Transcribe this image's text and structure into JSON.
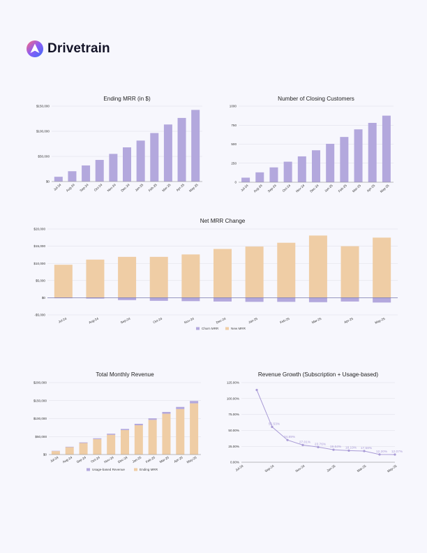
{
  "brand": {
    "name": "Drivetrain",
    "icon": "drivetrain-logo-icon"
  },
  "colors": {
    "purple": "#b3a8dd",
    "tan": "#efcda5",
    "purple_line": "#a99bd6",
    "background": "#f7f7fd"
  },
  "chart_data": [
    {
      "id": "ending-mrr",
      "type": "bar",
      "title": "Ending MRR (in $)",
      "categories": [
        "Jul-24",
        "Aug-24",
        "Sep-24",
        "Oct-24",
        "Nov-24",
        "Dec-24",
        "Jan-25",
        "Feb-25",
        "Mar-25",
        "Apr-25",
        "May-25"
      ],
      "values": [
        9500,
        20500,
        32000,
        43000,
        55000,
        68000,
        81500,
        96500,
        113500,
        126500,
        142500
      ],
      "ylim": [
        0,
        150000
      ],
      "yticks": [
        0,
        50000,
        100000,
        150000
      ],
      "ytick_labels": [
        "$0",
        "$50,000",
        "$100,000",
        "$150,000"
      ],
      "xlabel": "",
      "ylabel": ""
    },
    {
      "id": "closing-customers",
      "type": "bar",
      "title": "Number of Closing Customers",
      "categories": [
        "Jul-24",
        "Aug-24",
        "Sep-24",
        "Oct-24",
        "Nov-24",
        "Dec-24",
        "Jan-25",
        "Feb-25",
        "Mar-25",
        "Apr-25",
        "May-25"
      ],
      "values": [
        60,
        130,
        195,
        270,
        340,
        420,
        505,
        595,
        695,
        780,
        875
      ],
      "ylim": [
        0,
        1000
      ],
      "yticks": [
        0,
        250,
        500,
        750,
        1000
      ],
      "ytick_labels": [
        "0",
        "250",
        "500",
        "750",
        "1000"
      ],
      "xlabel": "",
      "ylabel": ""
    },
    {
      "id": "net-mrr-change",
      "type": "bar",
      "stacked": true,
      "title": "Net MRR Change",
      "categories": [
        "Jul-24",
        "Aug-24",
        "Sep-24",
        "Oct-24",
        "Nov-24",
        "Dec-24",
        "Jan-25",
        "Feb-25",
        "Mar-25",
        "Apr-25",
        "May-25"
      ],
      "series": [
        {
          "name": "Churn MRR",
          "values": [
            -150,
            -250,
            -700,
            -900,
            -1000,
            -1100,
            -1200,
            -1200,
            -1300,
            -1100,
            -1400
          ]
        },
        {
          "name": "New MRR",
          "values": [
            9600,
            11100,
            11900,
            11900,
            12600,
            14200,
            14900,
            16000,
            18100,
            15000,
            17500
          ]
        }
      ],
      "ylim": [
        -5000,
        20000
      ],
      "yticks": [
        -5000,
        0,
        5000,
        10000,
        15000,
        20000
      ],
      "ytick_labels": [
        "-$5,000",
        "$0",
        "$5,000",
        "$10,000",
        "$15,000",
        "$20,000"
      ],
      "legend": "bottom"
    },
    {
      "id": "total-monthly-revenue",
      "type": "bar",
      "stacked": true,
      "title": "Total Monthly Revenue",
      "categories": [
        "Jul-24",
        "Aug-24",
        "Sep-24",
        "Oct-24",
        "Nov-24",
        "Dec-24",
        "Jan-25",
        "Feb-25",
        "Mar-25",
        "Apr-25",
        "May-25"
      ],
      "series": [
        {
          "name": "Ending MRR",
          "values": [
            9500,
            20500,
            32000,
            43000,
            55000,
            68000,
            81500,
            96500,
            113500,
            126500,
            142500
          ]
        },
        {
          "name": "Usage-based Revenue",
          "values": [
            800,
            1200,
            1800,
            2200,
            3000,
            3200,
            4000,
            4200,
            5000,
            6000,
            6500
          ]
        }
      ],
      "ylim": [
        0,
        200000
      ],
      "yticks": [
        0,
        50000,
        100000,
        150000,
        200000
      ],
      "ytick_labels": [
        "$0",
        "$50,000",
        "$100,000",
        "$150,000",
        "$200,000"
      ],
      "legend": "bottom",
      "legend_order": [
        "Usage-based Revenue",
        "Ending MRR"
      ]
    },
    {
      "id": "revenue-growth",
      "type": "line",
      "title": "Revenue Growth (Subscription + Usage-based)",
      "categories": [
        "Jul-24",
        "Aug-24",
        "Sep-24",
        "Oct-24",
        "Nov-24",
        "Dec-24",
        "Jan-25",
        "Feb-25",
        "Mar-25",
        "Apr-25",
        "May-25"
      ],
      "x_tick_labels": [
        "Jul-24",
        "Sep-24",
        "Nov-24",
        "Jan-25",
        "Mar-25",
        "May-25"
      ],
      "values": [
        null,
        113.5,
        55.53,
        34.89,
        27.01,
        23.76,
        19.64,
        18.19,
        17.58,
        12.2,
        12.07
      ],
      "data_labels": [
        "",
        "",
        "55.53%",
        "34.89%",
        "27.01%",
        "23.76%",
        "19.64%",
        "18.19%",
        "17.58%",
        "12.20%",
        "12.07%"
      ],
      "ylim": [
        0,
        125
      ],
      "yticks": [
        0,
        25,
        50,
        75,
        100,
        125
      ],
      "ytick_labels": [
        "0.00%",
        "25.00%",
        "50.00%",
        "75.00%",
        "100.00%",
        "125.00%"
      ]
    }
  ]
}
